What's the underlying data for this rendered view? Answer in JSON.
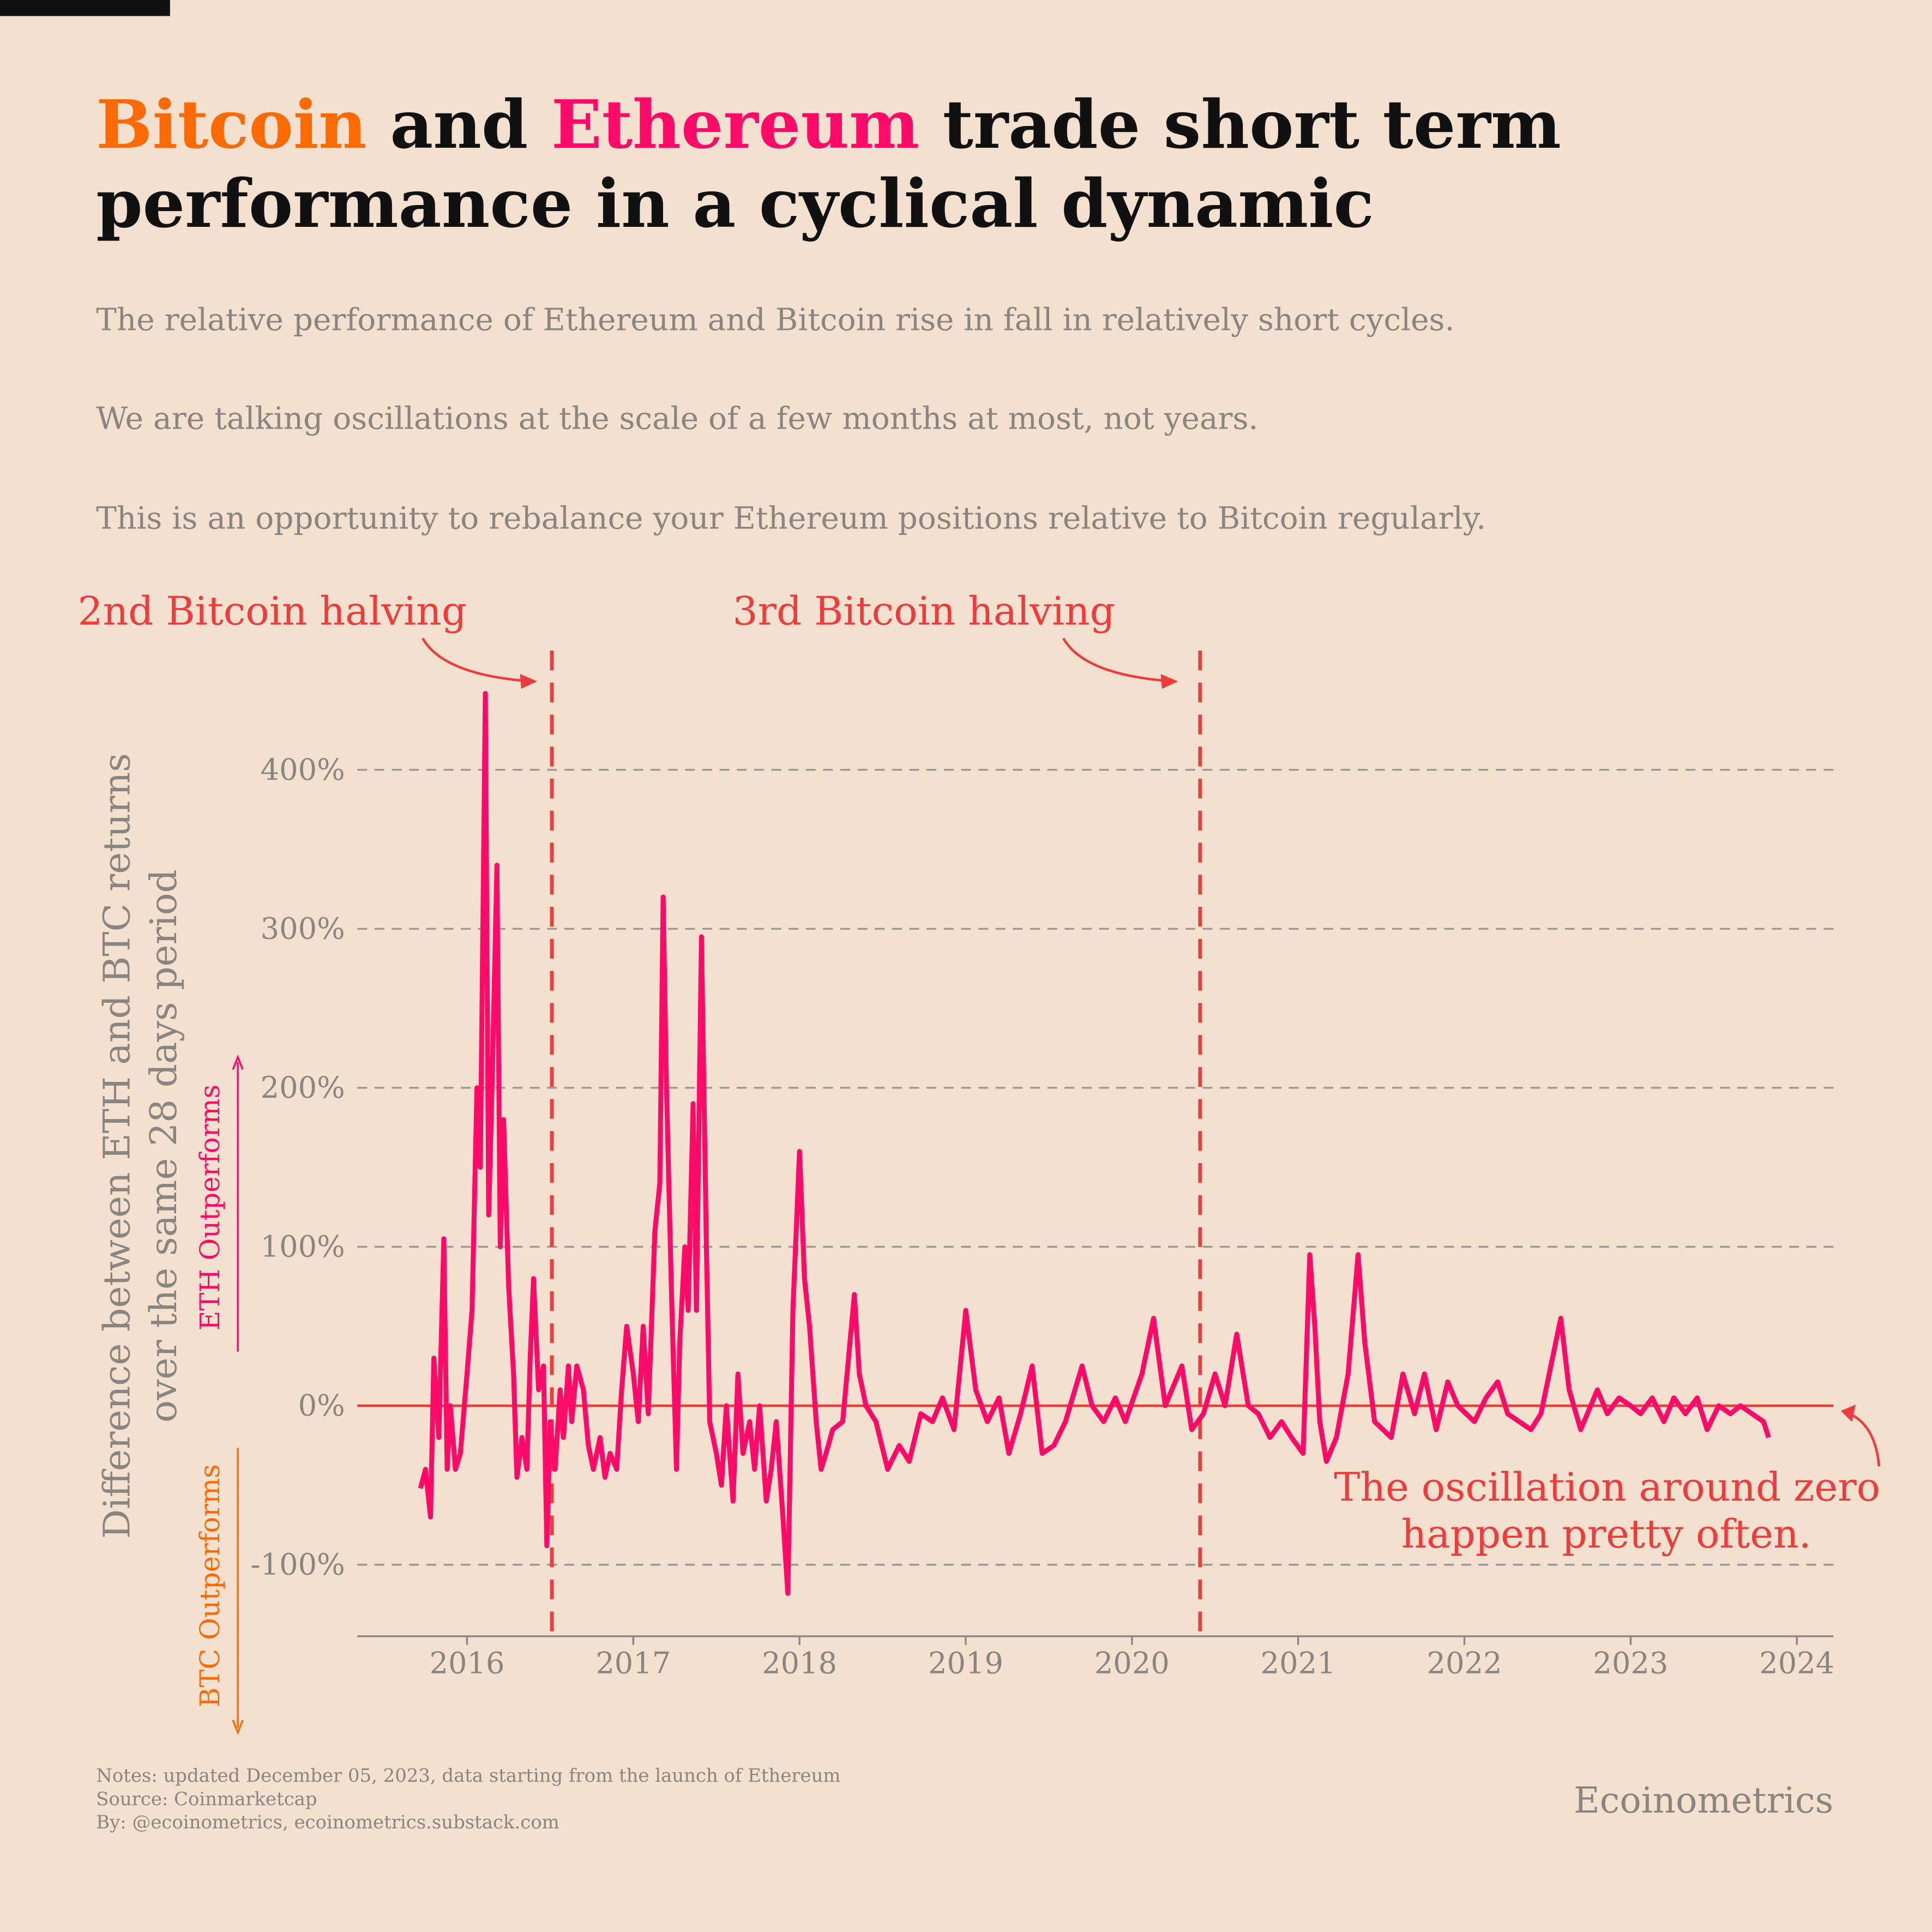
{
  "chart_data": {
    "type": "line",
    "title": [
      [
        {
          "text": "Bitcoin",
          "color": "#ff6a00"
        },
        {
          "text": " and "
        },
        {
          "text": "Ethereum",
          "color": "#ff0a68"
        },
        {
          "text": " trade short term"
        }
      ],
      [
        {
          "text": "performance in a cyclical dynamic"
        }
      ]
    ],
    "subtitle": [
      "The relative performance of Ethereum and Bitcoin rise in fall in relatively short cycles.",
      "We are talking oscillations at the scale of a few months at most, not years.",
      "This is an opportunity to rebalance your Ethereum positions relative to Bitcoin regularly."
    ],
    "y_label": [
      "Difference between ETH and BTC returns",
      "over the same 28 days period"
    ],
    "eth_label": "ETH Outperforms",
    "btc_label": "BTC Outperforms",
    "annotation": [
      "The oscillation around zero",
      "happen pretty often."
    ],
    "notes": [
      "Notes: updated December 05, 2023, data starting from the launch of Ethereum",
      "Source: Coinmarketcap",
      "By: @ecoinometrics, ecoinometrics.substack.com"
    ],
    "brand": "Ecoinometrics",
    "color": "#ff0a68",
    "vlines": [
      {
        "x": 2016.51,
        "label": "2nd Bitcoin halving"
      },
      {
        "x": 2020.41,
        "label": "3rd Bitcoin halving"
      }
    ],
    "hline": 0,
    "xlim": [
      2015.34,
      2024.22
    ],
    "xticks": [
      2016,
      2017,
      2018,
      2019,
      2020,
      2021,
      2022,
      2023,
      2024
    ],
    "ylim": [
      -145,
      475
    ],
    "yticks": [
      {
        "value": -100,
        "label": "-100%"
      },
      {
        "value": 0,
        "label": "0%"
      },
      {
        "value": 100,
        "label": "100%"
      },
      {
        "value": 200,
        "label": "200%"
      },
      {
        "value": 300,
        "label": "300%"
      },
      {
        "value": 400,
        "label": "400%"
      }
    ],
    "grid": true,
    "x": [
      2015.72,
      2015.75,
      2015.78,
      2015.8,
      2015.83,
      2015.86,
      2015.88,
      2015.9,
      2015.93,
      2015.96,
      2016.0,
      2016.03,
      2016.06,
      2016.08,
      2016.11,
      2016.13,
      2016.15,
      2016.18,
      2016.2,
      2016.22,
      2016.25,
      2016.28,
      2016.3,
      2016.33,
      2016.36,
      2016.38,
      2016.4,
      2016.43,
      2016.46,
      2016.48,
      2016.5,
      2016.53,
      2016.56,
      2016.58,
      2016.61,
      2016.63,
      2016.66,
      2016.7,
      2016.73,
      2016.76,
      2016.8,
      2016.83,
      2016.86,
      2016.9,
      2016.93,
      2016.96,
      2017.0,
      2017.03,
      2017.06,
      2017.09,
      2017.13,
      2017.16,
      2017.18,
      2017.2,
      2017.23,
      2017.26,
      2017.28,
      2017.31,
      2017.33,
      2017.36,
      2017.38,
      2017.41,
      2017.44,
      2017.46,
      2017.5,
      2017.53,
      2017.56,
      2017.6,
      2017.63,
      2017.66,
      2017.7,
      2017.73,
      2017.76,
      2017.8,
      2017.83,
      2017.86,
      2017.9,
      2017.93,
      2017.96,
      2018.0,
      2018.03,
      2018.06,
      2018.1,
      2018.13,
      2018.16,
      2018.2,
      2018.26,
      2018.33,
      2018.36,
      2018.4,
      2018.46,
      2018.53,
      2018.6,
      2018.66,
      2018.73,
      2018.8,
      2018.86,
      2018.93,
      2019.0,
      2019.06,
      2019.13,
      2019.2,
      2019.26,
      2019.33,
      2019.4,
      2019.46,
      2019.53,
      2019.6,
      2019.7,
      2019.76,
      2019.83,
      2019.9,
      2019.96,
      2020.06,
      2020.13,
      2020.2,
      2020.3,
      2020.36,
      2020.43,
      2020.5,
      2020.56,
      2020.63,
      2020.7,
      2020.76,
      2020.83,
      2020.9,
      2020.96,
      2021.03,
      2021.07,
      2021.1,
      2021.13,
      2021.17,
      2021.23,
      2021.3,
      2021.36,
      2021.4,
      2021.46,
      2021.56,
      2021.63,
      2021.7,
      2021.76,
      2021.83,
      2021.9,
      2021.96,
      2022.06,
      2022.13,
      2022.2,
      2022.26,
      2022.33,
      2022.4,
      2022.46,
      2022.53,
      2022.58,
      2022.63,
      2022.7,
      2022.8,
      2022.86,
      2022.93,
      2023.0,
      2023.06,
      2023.13,
      2023.2,
      2023.26,
      2023.33,
      2023.4,
      2023.46,
      2023.53,
      2023.6,
      2023.66,
      2023.73,
      2023.8,
      2023.83
    ],
    "values": [
      -52,
      -40,
      -70,
      30,
      -20,
      105,
      -40,
      0,
      -40,
      -30,
      20,
      60,
      200,
      150,
      448,
      120,
      200,
      340,
      100,
      180,
      75,
      20,
      -45,
      -20,
      -40,
      30,
      80,
      10,
      25,
      -88,
      -10,
      -40,
      10,
      -20,
      25,
      -10,
      25,
      10,
      -25,
      -40,
      -20,
      -45,
      -30,
      -40,
      10,
      50,
      20,
      -10,
      50,
      -5,
      110,
      140,
      320,
      200,
      70,
      -40,
      40,
      100,
      60,
      190,
      60,
      295,
      100,
      -10,
      -30,
      -50,
      0,
      -60,
      20,
      -30,
      -10,
      -40,
      0,
      -60,
      -40,
      -10,
      -70,
      -118,
      60,
      160,
      80,
      50,
      -10,
      -40,
      -30,
      -15,
      -10,
      70,
      20,
      0,
      -10,
      -40,
      -25,
      -35,
      -5,
      -10,
      5,
      -15,
      60,
      10,
      -10,
      5,
      -30,
      -5,
      25,
      -30,
      -25,
      -10,
      25,
      0,
      -10,
      5,
      -10,
      20,
      55,
      0,
      25,
      -15,
      -5,
      20,
      0,
      45,
      0,
      -5,
      -20,
      -10,
      -20,
      -30,
      95,
      50,
      -10,
      -35,
      -20,
      20,
      95,
      40,
      -10,
      -20,
      20,
      -5,
      20,
      -15,
      15,
      0,
      -10,
      5,
      15,
      -5,
      -10,
      -15,
      -5,
      30,
      55,
      10,
      -15,
      10,
      -5,
      5,
      0,
      -5,
      5,
      -10,
      5,
      -5,
      5,
      -15,
      0,
      -5,
      0,
      -5,
      -10,
      -20
    ]
  }
}
